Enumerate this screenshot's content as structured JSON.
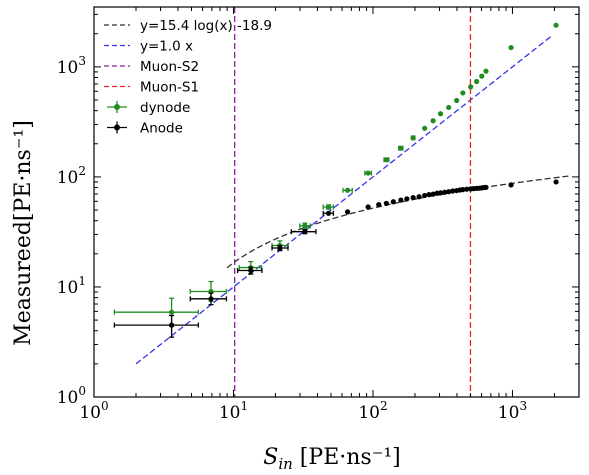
{
  "chart_data": {
    "type": "scatter",
    "xscale": "log",
    "yscale": "log",
    "xlim": [
      1,
      3000
    ],
    "ylim": [
      1,
      3500
    ],
    "xlabel": {
      "main": "S",
      "sub": "in",
      "rest": " [PE·ns⁻¹]"
    },
    "ylabel": "Measureed[PE·ns⁻¹]",
    "x_ticks": [
      {
        "value": 1,
        "base": "10",
        "exp": "0"
      },
      {
        "value": 10,
        "base": "10",
        "exp": "1"
      },
      {
        "value": 100,
        "base": "10",
        "exp": "2"
      },
      {
        "value": 1000,
        "base": "10",
        "exp": "3"
      }
    ],
    "y_ticks": [
      {
        "value": 1,
        "base": "10",
        "exp": "0"
      },
      {
        "value": 10,
        "base": "10",
        "exp": "1"
      },
      {
        "value": 100,
        "base": "10",
        "exp": "2"
      },
      {
        "value": 1000,
        "base": "10",
        "exp": "3"
      }
    ],
    "legend_position": "top-left",
    "lines": [
      {
        "name": "y=15.4 log(x) -18.9",
        "color": "#333333",
        "kind": "fit",
        "a": 15.4,
        "b": -18.9,
        "xrange": [
          9,
          2600
        ]
      },
      {
        "name": "y=1.0 x",
        "color": "#3333ee",
        "kind": "linear",
        "k": 1.0,
        "xrange": [
          2,
          1900
        ]
      },
      {
        "name": "Muon-S2",
        "color": "#882299",
        "kind": "vline",
        "x": 10.2
      },
      {
        "name": "Muon-S1",
        "color": "#ee2222",
        "kind": "vline",
        "x": 500
      }
    ],
    "series": [
      {
        "name": "dynode",
        "color": "#228b22",
        "points": [
          {
            "x": 3.6,
            "y": 5.9,
            "xlo": 1.4,
            "xhi": 5.6,
            "ylo": 4.4,
            "yhi": 7.9
          },
          {
            "x": 6.9,
            "y": 9.1,
            "xlo": 4.9,
            "xhi": 8.9,
            "ylo": 7.4,
            "yhi": 11.2
          },
          {
            "x": 13.3,
            "y": 15.0,
            "xlo": 11.0,
            "xhi": 15.9,
            "ylo": 13.2,
            "yhi": 17.0
          },
          {
            "x": 21.5,
            "y": 23.8,
            "xlo": 18.9,
            "xhi": 24.6,
            "ylo": 21.6,
            "yhi": 26.2
          },
          {
            "x": 32.5,
            "y": 35.9,
            "xlo": 29.9,
            "xhi": 35.6,
            "ylo": 33.9,
            "yhi": 38.0
          },
          {
            "x": 48.0,
            "y": 53.3,
            "xlo": 44.0,
            "xhi": 52.0,
            "ylo": 51.0,
            "yhi": 55.6
          },
          {
            "x": 65.8,
            "y": 75.6,
            "xlo": 61.0,
            "xhi": 71.0
          },
          {
            "x": 92.3,
            "y": 108.4,
            "xlo": 87.5,
            "xhi": 97.5
          },
          {
            "x": 124.8,
            "y": 143.3,
            "xlo": 120.0,
            "xhi": 130.0
          },
          {
            "x": 158.5,
            "y": 182.5,
            "xlo": 153.0,
            "xhi": 164.0
          },
          {
            "x": 194.1,
            "y": 226.4,
            "xlo": 189.0,
            "xhi": 199.5
          },
          {
            "x": 234.8,
            "y": 276.6
          },
          {
            "x": 270.0,
            "y": 323.9
          },
          {
            "x": 305.1,
            "y": 374.8
          },
          {
            "x": 349.1,
            "y": 427.9
          },
          {
            "x": 398.1,
            "y": 494.8
          },
          {
            "x": 441.0,
            "y": 579.4
          },
          {
            "x": 501.9,
            "y": 657.8
          },
          {
            "x": 553.3,
            "y": 736.3
          },
          {
            "x": 602.6,
            "y": 824.0
          },
          {
            "x": 646.1,
            "y": 913.2
          },
          {
            "x": 977.2,
            "y": 1497.0
          },
          {
            "x": 2054.2,
            "y": 2393.0
          }
        ]
      },
      {
        "name": "Anode",
        "color": "#000000",
        "points": [
          {
            "x": 3.6,
            "y": 4.5,
            "xlo": 1.4,
            "xhi": 5.6,
            "ylo": 3.5,
            "yhi": 5.5
          },
          {
            "x": 6.9,
            "y": 7.8,
            "xlo": 4.9,
            "xhi": 8.9,
            "ylo": 6.9,
            "yhi": 8.8
          },
          {
            "x": 13.3,
            "y": 14.1,
            "xlo": 10.7,
            "xhi": 16.0,
            "ylo": 13.1,
            "yhi": 15.1
          },
          {
            "x": 21.5,
            "y": 22.6,
            "xlo": 18.9,
            "xhi": 24.6,
            "ylo": 21.4,
            "yhi": 23.8
          },
          {
            "x": 32.5,
            "y": 31.8,
            "xlo": 26.0,
            "xhi": 39.0,
            "ylo": 30.5,
            "yhi": 33.1
          },
          {
            "x": 48.0,
            "y": 46.7,
            "xlo": 44.0,
            "xhi": 52.0
          },
          {
            "x": 65.8,
            "y": 48.1
          },
          {
            "x": 92.3,
            "y": 53.3
          },
          {
            "x": 110.0,
            "y": 56.0
          },
          {
            "x": 124.8,
            "y": 57.5
          },
          {
            "x": 140.0,
            "y": 59.5
          },
          {
            "x": 158.5,
            "y": 61.6
          },
          {
            "x": 175.0,
            "y": 63.2
          },
          {
            "x": 194.1,
            "y": 64.9
          },
          {
            "x": 214.0,
            "y": 66.0
          },
          {
            "x": 234.8,
            "y": 67.9
          },
          {
            "x": 252.0,
            "y": 69.0
          },
          {
            "x": 270.0,
            "y": 69.8
          },
          {
            "x": 288.0,
            "y": 71.0
          },
          {
            "x": 305.1,
            "y": 71.6
          },
          {
            "x": 327.0,
            "y": 72.5
          },
          {
            "x": 349.1,
            "y": 73.4
          },
          {
            "x": 373.0,
            "y": 74.5
          },
          {
            "x": 398.1,
            "y": 75.1
          },
          {
            "x": 420.0,
            "y": 76.0
          },
          {
            "x": 441.0,
            "y": 76.6
          },
          {
            "x": 470.0,
            "y": 77.3
          },
          {
            "x": 501.9,
            "y": 77.8
          },
          {
            "x": 527.0,
            "y": 78.3
          },
          {
            "x": 553.3,
            "y": 78.7
          },
          {
            "x": 577.0,
            "y": 79.0
          },
          {
            "x": 602.6,
            "y": 79.5
          },
          {
            "x": 623.0,
            "y": 80.0
          },
          {
            "x": 646.1,
            "y": 80.3
          },
          {
            "x": 977.2,
            "y": 84.7
          },
          {
            "x": 2054.2,
            "y": 90.0
          }
        ]
      }
    ]
  }
}
